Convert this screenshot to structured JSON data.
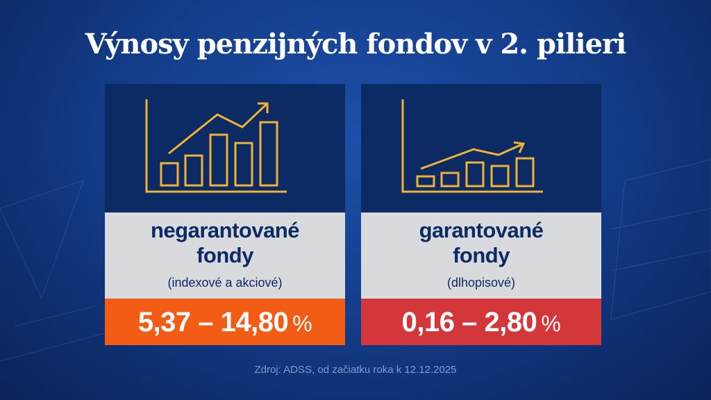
{
  "title": "Výnosy penzijných fondov v 2. pilieri",
  "colors": {
    "background": "#143e8c",
    "card_top": "#0c2a63",
    "card_mid": "#d9dade",
    "icon_stroke": "#f2b233",
    "negarantovane_value_bg": "#f25c15",
    "garantovane_value_bg": "#d4373a"
  },
  "cards": [
    {
      "icon": "bar-chart-growth-icon",
      "label_line1": "negarantované",
      "label_line2": "fondy",
      "sub": "(indexové a akciové)",
      "value": "5,37 – 14,80",
      "unit": "%"
    },
    {
      "icon": "bar-chart-slow-growth-icon",
      "label_line1": "garantované",
      "label_line2": "fondy",
      "sub": "(dlhopisové)",
      "value": "0,16 – 2,80",
      "unit": "%"
    }
  ],
  "source": "Zdroj: ADSS, od začiatku roka k 12.12.2025"
}
